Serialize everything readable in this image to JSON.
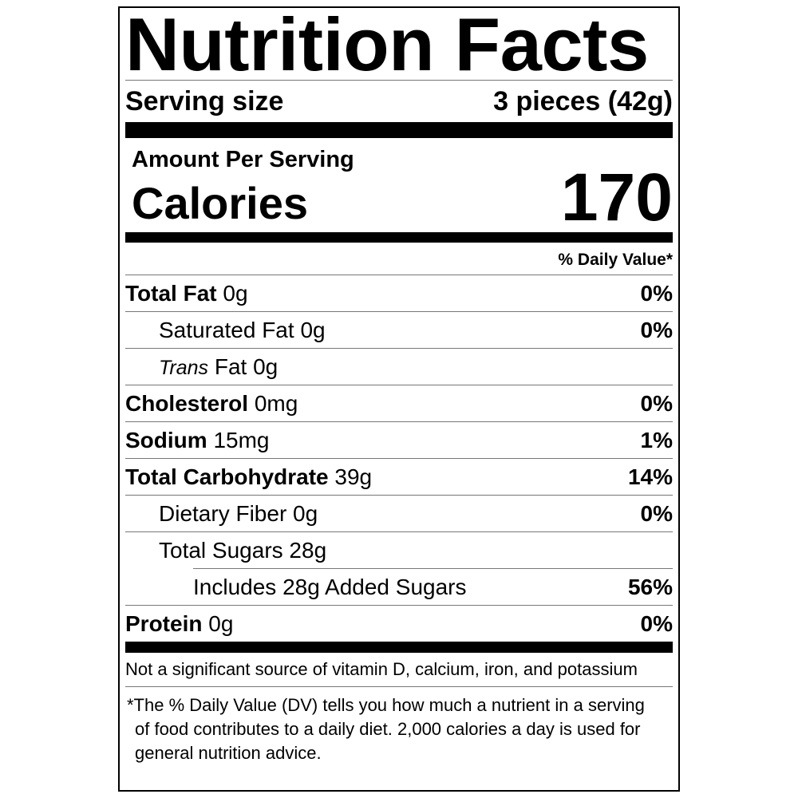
{
  "title": "Nutrition Facts",
  "serving": {
    "label": "Serving size",
    "value": "3 pieces (42g)"
  },
  "amount_per_serving": "Amount Per Serving",
  "calories": {
    "label": "Calories",
    "value": 170
  },
  "daily_value_header": "% Daily Value*",
  "rows": [
    {
      "name": "Total Fat",
      "amount": "0g",
      "dv": "0%"
    },
    {
      "name": "Saturated Fat",
      "amount": "0g",
      "dv": "0%"
    },
    {
      "name_italic": "Trans",
      "name": "Fat",
      "amount": "0g"
    },
    {
      "name": "Cholesterol",
      "amount": "0mg",
      "dv": "0%"
    },
    {
      "name": "Sodium",
      "amount": "15mg",
      "dv": "1%"
    },
    {
      "name": "Total Carbohydrate",
      "amount": "39g",
      "dv": "14%"
    },
    {
      "name": "Dietary Fiber",
      "amount": "0g",
      "dv": "0%"
    },
    {
      "name": "Total Sugars",
      "amount": "28g"
    },
    {
      "name": "Includes 28g Added Sugars",
      "dv": "56%"
    },
    {
      "name": "Protein",
      "amount": "0g",
      "dv": "0%"
    }
  ],
  "footnotes": [
    "Not a significant source of vitamin D, calcium, iron, and potassium",
    "*The % Daily Value (DV) tells you how much a nutrient in a serving of food contributes to a daily diet. 2,000 calories a day is used for general nutrition advice."
  ]
}
